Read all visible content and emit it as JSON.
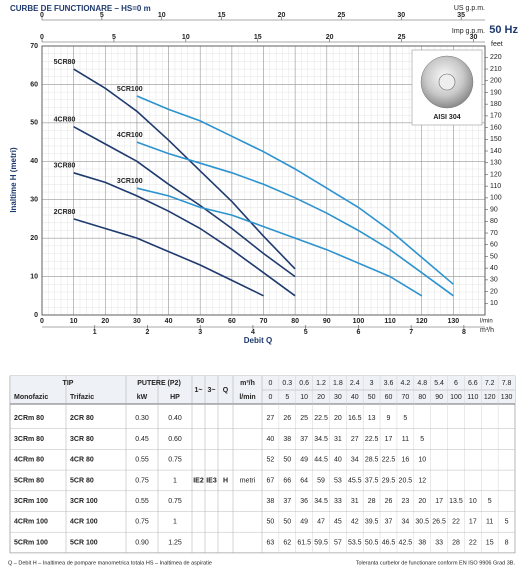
{
  "chart_data": {
    "type": "line",
    "title": "CURBE DE FUNCTIONARE  –  HS=0 m",
    "frequency": "50 Hz",
    "xlabel": "Debit Q",
    "ylabel": "Inaltime H (metri)",
    "x_unit": "l/min",
    "x": [
      0,
      5,
      10,
      20,
      30,
      40,
      50,
      60,
      70,
      80,
      90,
      100,
      110,
      120,
      130
    ],
    "xlim": [
      0,
      140
    ],
    "xticks": [
      0,
      10,
      20,
      30,
      40,
      50,
      60,
      70,
      80,
      90,
      100,
      110,
      120,
      130
    ],
    "ylim": [
      0,
      70
    ],
    "yticks": [
      0,
      10,
      20,
      30,
      40,
      50,
      60,
      70
    ],
    "grid": true,
    "series": [
      {
        "name": "2CR80",
        "color": "#1f3a6e",
        "values": [
          null,
          null,
          25,
          22.5,
          20,
          16.5,
          13,
          9,
          5,
          null,
          null,
          null,
          null,
          null,
          null
        ]
      },
      {
        "name": "3CR80",
        "color": "#1f3a6e",
        "values": [
          null,
          null,
          37,
          34.5,
          31,
          27,
          22.5,
          17,
          11,
          5,
          null,
          null,
          null,
          null,
          null
        ]
      },
      {
        "name": "4CR80",
        "color": "#1f3a6e",
        "values": [
          null,
          null,
          49,
          44.5,
          40,
          34,
          28.5,
          22.5,
          16,
          10,
          null,
          null,
          null,
          null,
          null
        ]
      },
      {
        "name": "5CR80",
        "color": "#1f3a6e",
        "values": [
          null,
          null,
          64,
          59,
          53,
          45.5,
          37.5,
          29.5,
          20.5,
          12,
          null,
          null,
          null,
          null,
          null
        ]
      },
      {
        "name": "3CR100",
        "color": "#2c93cf",
        "values": [
          null,
          null,
          null,
          null,
          33,
          31,
          28,
          26,
          23,
          20,
          17,
          13.5,
          10,
          5,
          null
        ]
      },
      {
        "name": "4CR100",
        "color": "#2c93cf",
        "values": [
          null,
          null,
          null,
          null,
          45,
          42,
          39.5,
          37,
          34,
          30.5,
          26.5,
          22,
          17,
          11,
          5
        ]
      },
      {
        "name": "5CR100",
        "color": "#2c93cf",
        "values": [
          null,
          null,
          null,
          null,
          57,
          53.5,
          50.5,
          46.5,
          42.5,
          38,
          33,
          28,
          22,
          15,
          8
        ]
      }
    ],
    "secondary_axes": [
      {
        "position": "top",
        "label": "US g.p.m.",
        "lim": [
          0,
          36.99
        ],
        "ticks": [
          0,
          5,
          10,
          15,
          20,
          25,
          30,
          35
        ]
      },
      {
        "position": "top2",
        "label": "Imp g.p.m.",
        "lim": [
          0,
          30.8
        ],
        "ticks": [
          0,
          5,
          10,
          15,
          20,
          25,
          30
        ]
      },
      {
        "position": "bottom2",
        "label": "m³/h",
        "lim": [
          0,
          8.4
        ],
        "ticks": [
          1,
          2,
          3,
          4,
          5,
          6,
          7,
          8
        ]
      },
      {
        "position": "right",
        "label": "feet",
        "lim": [
          0,
          229.66
        ],
        "ticks": [
          10,
          20,
          30,
          40,
          50,
          60,
          70,
          80,
          90,
          100,
          110,
          120,
          130,
          140,
          150,
          160,
          170,
          180,
          190,
          200,
          210,
          220
        ]
      }
    ],
    "inset_label": "AISI 304"
  },
  "table": {
    "headers": {
      "tip": "TIP",
      "power": "PUTERE (P2)",
      "q": "Q",
      "m3h": "m³/h",
      "lmin": "l/min",
      "mono": "Monofazic",
      "tri": "Trifazic",
      "kw": "kW",
      "hp": "HP",
      "single": "1~",
      "three": "3~",
      "ie2": "IE2",
      "ie3": "IE3",
      "h": "H",
      "metri": "metri"
    },
    "q_m3h": [
      0,
      0.3,
      0.6,
      1.2,
      1.8,
      2.4,
      3.0,
      3.6,
      4.2,
      4.8,
      5.4,
      6.0,
      6.6,
      7.2,
      7.8
    ],
    "q_lmin": [
      0,
      5,
      10,
      20,
      30,
      40,
      50,
      60,
      70,
      80,
      90,
      100,
      110,
      120,
      130
    ],
    "rows": [
      {
        "mono": "2CRm 80",
        "tri": "2CR 80",
        "kw": "0.30",
        "hp": "0.40",
        "h": [
          27,
          26,
          25,
          22.5,
          20,
          16.5,
          13,
          9,
          5
        ]
      },
      {
        "mono": "3CRm 80",
        "tri": "3CR 80",
        "kw": "0.45",
        "hp": "0.60",
        "h": [
          40,
          38,
          37,
          34.5,
          31,
          27,
          22.5,
          17,
          11,
          5
        ]
      },
      {
        "mono": "4CRm 80",
        "tri": "4CR 80",
        "kw": "0.55",
        "hp": "0.75",
        "h": [
          52,
          50,
          49,
          44.5,
          40,
          34,
          28.5,
          22.5,
          16,
          10
        ]
      },
      {
        "mono": "5CRm 80",
        "tri": "5CR 80",
        "kw": "0.75",
        "hp": "1",
        "h": [
          67,
          66,
          64,
          59,
          53,
          45.5,
          37.5,
          29.5,
          20.5,
          12
        ]
      },
      {
        "mono": "3CRm 100",
        "tri": "3CR 100",
        "kw": "0.55",
        "hp": "0.75",
        "h": [
          38,
          37,
          36,
          34.5,
          33,
          31,
          28,
          26,
          23,
          20,
          17,
          13.5,
          10,
          5
        ]
      },
      {
        "mono": "4CRm 100",
        "tri": "4CR 100",
        "kw": "0.75",
        "hp": "1",
        "h": [
          50,
          50,
          49,
          47,
          45,
          42,
          39.5,
          37,
          34,
          30.5,
          26.5,
          22,
          17,
          11,
          5
        ]
      },
      {
        "mono": "5CRm 100",
        "tri": "5CR 100",
        "kw": "0.90",
        "hp": "1.25",
        "h": [
          63,
          62,
          61.5,
          59.5,
          57,
          53.5,
          50.5,
          46.5,
          42.5,
          38,
          33,
          28,
          22,
          15,
          8
        ]
      }
    ]
  },
  "footnote": {
    "left": "Q – Debit   H – Inaltimea de pompare manometrica totala   HS – Inaltimea de aspiratie",
    "right": "Toleranta curbelor de functionare conform EN ISO 9906 Grad 3B."
  }
}
